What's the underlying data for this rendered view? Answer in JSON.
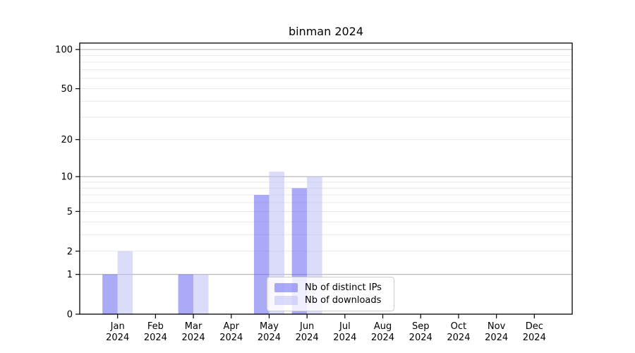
{
  "chart_data": {
    "type": "bar",
    "title": "binman 2024",
    "categories": [
      "Jan",
      "Feb",
      "Mar",
      "Apr",
      "May",
      "Jun",
      "Jul",
      "Aug",
      "Sep",
      "Oct",
      "Nov",
      "Dec"
    ],
    "x_year_label": "2024",
    "series": [
      {
        "name": "Nb of distinct IPs",
        "color": "rgba(85,85,240,0.5)",
        "values": [
          1,
          0,
          1,
          0,
          7,
          8,
          0,
          0,
          0,
          0,
          0,
          0
        ]
      },
      {
        "name": "Nb of downloads",
        "color": "rgba(190,190,245,0.55)",
        "values": [
          2,
          0,
          1,
          0,
          11,
          10,
          0,
          0,
          0,
          0,
          0,
          0
        ]
      }
    ],
    "y_scale": "log1p",
    "y_ticks": [
      0,
      1,
      2,
      5,
      10,
      20,
      50,
      100
    ],
    "y_major_gridlines": [
      1,
      10,
      100
    ],
    "y_minor_gridlines": [
      2,
      3,
      4,
      5,
      6,
      7,
      8,
      9,
      20,
      30,
      40,
      50,
      60,
      70,
      80,
      90
    ],
    "ylim": [
      0,
      112
    ],
    "grid": true,
    "legend_position": "lower center",
    "colors": {
      "major_grid": "#b3b3b3",
      "minor_grid": "#e9e9e9",
      "axis": "#000000"
    }
  }
}
